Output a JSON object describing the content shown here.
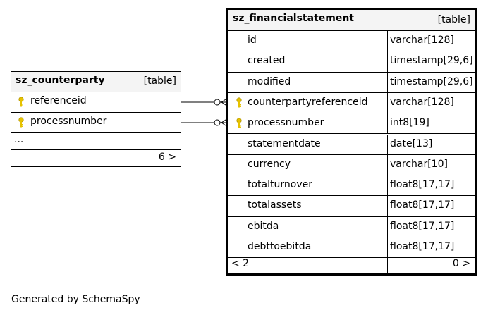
{
  "counterparty": {
    "name": "sz_counterparty",
    "kind": "[table]",
    "columns": [
      {
        "name": "referenceid",
        "key": true
      },
      {
        "name": "processnumber",
        "key": true
      }
    ],
    "ellipsis": "...",
    "footer_left": "",
    "footer_right": "6 >"
  },
  "financialstatement": {
    "name": "sz_financialstatement",
    "kind": "[table]",
    "columns": [
      {
        "name": "id",
        "type": "varchar[128]",
        "key": false
      },
      {
        "name": "created",
        "type": "timestamp[29,6]",
        "key": false
      },
      {
        "name": "modified",
        "type": "timestamp[29,6]",
        "key": false
      },
      {
        "name": "counterpartyreferenceid",
        "type": "varchar[128]",
        "key": true
      },
      {
        "name": "processnumber",
        "type": "int8[19]",
        "key": true
      },
      {
        "name": "statementdate",
        "type": "date[13]",
        "key": false
      },
      {
        "name": "currency",
        "type": "varchar[10]",
        "key": false
      },
      {
        "name": "totalturnover",
        "type": "float8[17,17]",
        "key": false
      },
      {
        "name": "totalassets",
        "type": "float8[17,17]",
        "key": false
      },
      {
        "name": "ebitda",
        "type": "float8[17,17]",
        "key": false
      },
      {
        "name": "debttoebitda",
        "type": "float8[17,17]",
        "key": false
      }
    ],
    "footer_left": "< 2",
    "footer_right": "0 >"
  },
  "generated_by": "Generated by SchemaSpy",
  "colors": {
    "key": "#e6c200",
    "header": "#f4f4f4",
    "border": "#000000"
  },
  "icons": {
    "key": "key-icon"
  }
}
